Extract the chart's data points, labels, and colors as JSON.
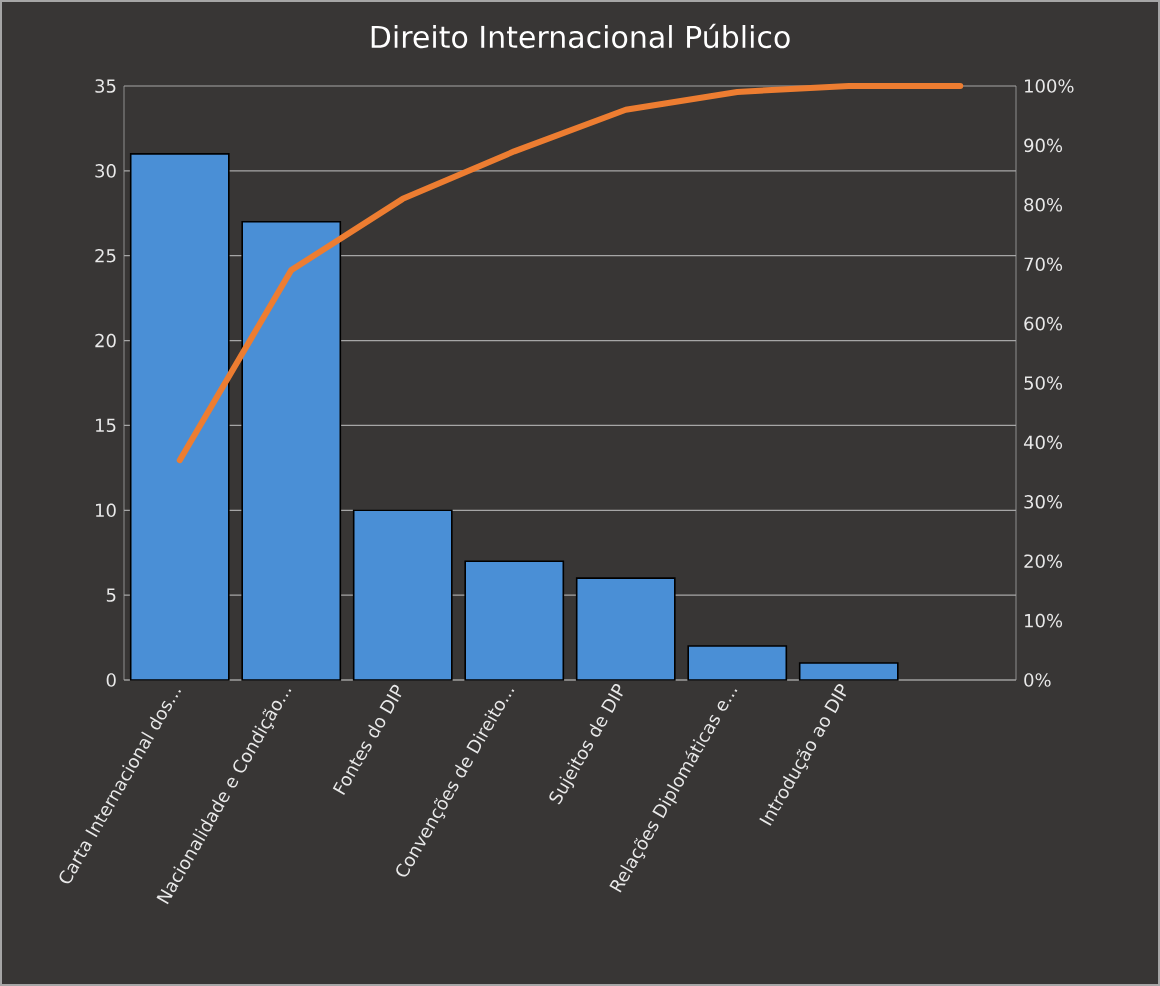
{
  "chart_data": {
    "type": "bar",
    "title": "Direito Internacional Público",
    "categories": [
      "Carta Internacional dos...",
      "Nacionalidade e Condição...",
      "Fontes do DIP",
      "Convenções de Direito...",
      "Sujeitos de DIP",
      "Relações Diplomáticas e...",
      "Introdução ao DIP",
      null
    ],
    "series": [
      {
        "color": "#4a8fd6",
        "values": [
          31,
          27,
          10,
          7,
          6,
          2,
          1,
          null
        ]
      },
      {
        "type": "line",
        "axis": "y2",
        "color": "#ed7d31",
        "values": [
          37,
          69,
          81,
          89,
          96,
          99,
          100,
          100
        ]
      }
    ],
    "ylim": [
      0,
      35
    ],
    "yticks": [
      0,
      5,
      10,
      15,
      20,
      25,
      30,
      35
    ],
    "y2lim": [
      0,
      100
    ],
    "y2ticks": [
      {
        "value": 0,
        "label": "0%"
      },
      {
        "value": 10,
        "label": "10%"
      },
      {
        "value": 20,
        "label": "20%"
      },
      {
        "value": 30,
        "label": "30%"
      },
      {
        "value": 40,
        "label": "40%"
      },
      {
        "value": 50,
        "label": "50%"
      },
      {
        "value": 60,
        "label": "60%"
      },
      {
        "value": 70,
        "label": "70%"
      },
      {
        "value": 80,
        "label": "80%"
      },
      {
        "value": 90,
        "label": "90%"
      },
      {
        "value": 100,
        "label": "100%"
      }
    ],
    "grid": "y"
  }
}
